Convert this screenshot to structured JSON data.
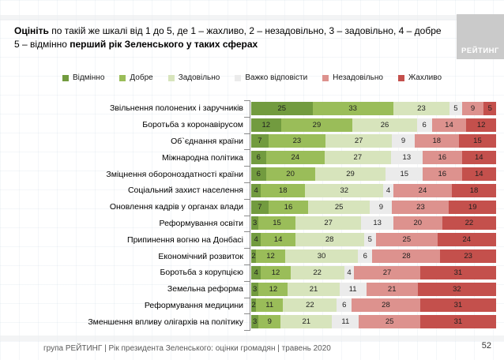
{
  "title": {
    "lead_bold": "Оцініть",
    "line1_rest": "по такій же шкалі від 1 до 5, де 1 – жахливо, 2 – незадовільно, 3 – задовільно, 4 – добре",
    "line2_normal": "5 – відмінно",
    "line2_bold": "перший рік Зеленського у таких сферах"
  },
  "logo": {
    "text": "РЕЙТИНГ"
  },
  "chart_data": {
    "type": "bar",
    "stacked": true,
    "orientation": "horizontal",
    "unit": "percent",
    "xlim": [
      0,
      100
    ],
    "legend_position": "top",
    "categories": [
      "Звільнення полонених і заручників",
      "Боротьба з коронавірусом",
      "Об`єднання країни",
      "Міжнародна політика",
      "Зміцнення обороноздатності країни",
      "Соціальний захист населення",
      "Оновлення кадрів у органах влади",
      "Реформування освіти",
      "Припинення вогню на Донбасі",
      "Економічний розвиток",
      "Боротьба з корупцією",
      "Земельна реформа",
      "Реформування медицини",
      "Зменшення впливу олігархів на політику"
    ],
    "series": [
      {
        "name": "Відмінно",
        "color": "#729b3f",
        "values": [
          25,
          12,
          7,
          6,
          6,
          4,
          7,
          3,
          4,
          2,
          4,
          3,
          2,
          3
        ]
      },
      {
        "name": "Добре",
        "color": "#9abd59",
        "values": [
          33,
          29,
          23,
          24,
          20,
          18,
          16,
          15,
          14,
          12,
          12,
          12,
          11,
          9
        ]
      },
      {
        "name": "Задовільно",
        "color": "#d7e4bc",
        "values": [
          23,
          26,
          27,
          27,
          29,
          32,
          25,
          27,
          28,
          30,
          22,
          21,
          22,
          21
        ]
      },
      {
        "name": "Важко відповісти",
        "color": "#ebebeb",
        "values": [
          5,
          6,
          9,
          13,
          15,
          4,
          9,
          13,
          5,
          6,
          4,
          11,
          6,
          11
        ]
      },
      {
        "name": "Незадовільно",
        "color": "#dd928e",
        "values": [
          9,
          14,
          18,
          16,
          16,
          24,
          23,
          20,
          25,
          28,
          27,
          21,
          28,
          25
        ]
      },
      {
        "name": "Жахливо",
        "color": "#c4504c",
        "values": [
          5,
          12,
          15,
          14,
          14,
          18,
          19,
          22,
          24,
          23,
          31,
          32,
          31,
          31
        ]
      }
    ]
  },
  "footer": {
    "source": "група РЕЙТИНГ |  Рік президента Зеленського: оцінки громадян | травень 2020",
    "page": "52"
  }
}
